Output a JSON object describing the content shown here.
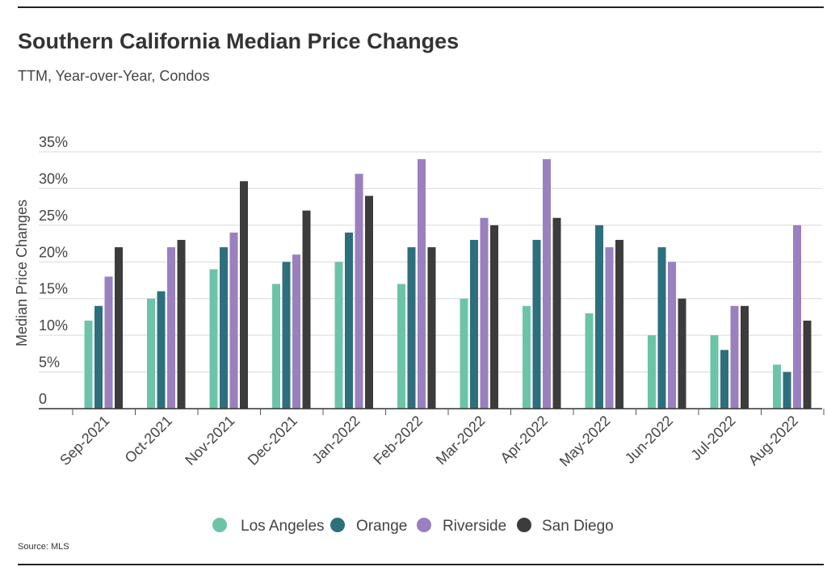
{
  "header": {
    "title": "Southern California Median Price Changes",
    "subtitle": "TTM, Year-over-Year, Condos"
  },
  "footer": {
    "source": "Source: MLS"
  },
  "chart_data": {
    "type": "bar",
    "title": "Southern California Median Price Changes",
    "subtitle": "TTM, Year-over-Year, Condos",
    "xlabel": "",
    "ylabel": "Median Price Changes",
    "ylim": [
      0,
      35
    ],
    "y_ticks": [
      "0",
      "5%",
      "10%",
      "15%",
      "20%",
      "25%",
      "30%",
      "35%"
    ],
    "y_tick_values": [
      0,
      5,
      10,
      15,
      20,
      25,
      30,
      35
    ],
    "grid": true,
    "legend_position": "bottom",
    "categories": [
      "Sep-2021",
      "Oct-2021",
      "Nov-2021",
      "Dec-2021",
      "Jan-2022",
      "Feb-2022",
      "Mar-2022",
      "Apr-2022",
      "May-2022",
      "Jun-2022",
      "Jul-2022",
      "Aug-2022"
    ],
    "series": [
      {
        "name": "Los Angeles",
        "color": "#6cc4a8",
        "values": [
          12,
          15,
          19,
          17,
          20,
          17,
          15,
          14,
          13,
          10,
          10,
          6
        ]
      },
      {
        "name": "Orange",
        "color": "#2e6f7d",
        "values": [
          14,
          16,
          22,
          20,
          24,
          22,
          23,
          23,
          25,
          22,
          8,
          5
        ]
      },
      {
        "name": "Riverside",
        "color": "#9a80bf",
        "values": [
          18,
          22,
          24,
          21,
          32,
          34,
          26,
          34,
          22,
          20,
          14,
          25
        ]
      },
      {
        "name": "San Diego",
        "color": "#3c3c3c",
        "values": [
          22,
          23,
          31,
          27,
          29,
          22,
          25,
          26,
          23,
          15,
          14,
          12
        ]
      }
    ]
  }
}
